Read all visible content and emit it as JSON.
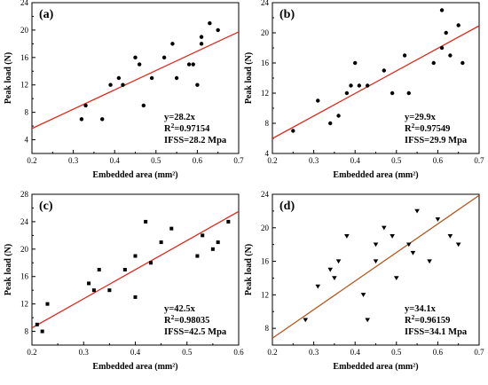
{
  "chart_data": [
    {
      "type": "scatter",
      "panel_label": "(a)",
      "xlabel": "Embedded area (mm²)",
      "ylabel": "Peak load (N)",
      "xlim": [
        0.2,
        0.7
      ],
      "ylim": [
        2,
        24
      ],
      "xticks": [
        0.2,
        0.3,
        0.4,
        0.5,
        0.6,
        0.7
      ],
      "yticks": [
        4,
        8,
        12,
        16,
        20,
        24
      ],
      "marker": "circle",
      "fit_line": {
        "slope": 28.2,
        "intercept": 0,
        "color": "#e0281e"
      },
      "annotation": [
        "y=28.2x",
        "R²=0.97154",
        "IFSS=28.2 Mpa"
      ],
      "points": [
        [
          0.32,
          7
        ],
        [
          0.33,
          9
        ],
        [
          0.37,
          7
        ],
        [
          0.39,
          12
        ],
        [
          0.41,
          13
        ],
        [
          0.42,
          12
        ],
        [
          0.45,
          16
        ],
        [
          0.46,
          15
        ],
        [
          0.47,
          9
        ],
        [
          0.49,
          13
        ],
        [
          0.52,
          16
        ],
        [
          0.54,
          18
        ],
        [
          0.55,
          13
        ],
        [
          0.58,
          15
        ],
        [
          0.59,
          15
        ],
        [
          0.6,
          12
        ],
        [
          0.61,
          18
        ],
        [
          0.61,
          19
        ],
        [
          0.63,
          21
        ],
        [
          0.65,
          20
        ]
      ]
    },
    {
      "type": "scatter",
      "panel_label": "(b)",
      "xlabel": "Embedded area (mm²)",
      "ylabel": "Peak load (N)",
      "xlim": [
        0.2,
        0.7
      ],
      "ylim": [
        4,
        24
      ],
      "xticks": [
        0.2,
        0.3,
        0.4,
        0.5,
        0.6,
        0.7
      ],
      "yticks": [
        4,
        8,
        12,
        16,
        20,
        24
      ],
      "marker": "circle",
      "fit_line": {
        "slope": 29.9,
        "intercept": 0,
        "color": "#e0281e"
      },
      "annotation": [
        "y=29.9x",
        "R²=0.97549",
        "IFSS=29.9 Mpa"
      ],
      "points": [
        [
          0.25,
          7
        ],
        [
          0.31,
          11
        ],
        [
          0.34,
          8
        ],
        [
          0.36,
          9
        ],
        [
          0.38,
          12
        ],
        [
          0.39,
          13
        ],
        [
          0.4,
          16
        ],
        [
          0.41,
          13
        ],
        [
          0.43,
          13
        ],
        [
          0.47,
          15
        ],
        [
          0.49,
          12
        ],
        [
          0.52,
          17
        ],
        [
          0.53,
          12
        ],
        [
          0.59,
          16
        ],
        [
          0.61,
          23
        ],
        [
          0.61,
          18
        ],
        [
          0.62,
          20
        ],
        [
          0.63,
          17
        ],
        [
          0.65,
          21
        ],
        [
          0.66,
          16
        ]
      ]
    },
    {
      "type": "scatter",
      "panel_label": "(c)",
      "xlabel": "Embedded area (mm²)",
      "ylabel": "Peak load (N)",
      "xlim": [
        0.2,
        0.6
      ],
      "ylim": [
        6,
        28
      ],
      "xticks": [
        0.2,
        0.3,
        0.4,
        0.5,
        0.6
      ],
      "yticks": [
        8,
        12,
        16,
        20,
        24,
        28
      ],
      "marker": "square",
      "fit_line": {
        "slope": 42.5,
        "intercept": 0,
        "color": "#e0281e"
      },
      "annotation": [
        "y=42.5x",
        "R²=0.98035",
        "IFSS=42.5 Mpa"
      ],
      "points": [
        [
          0.21,
          9
        ],
        [
          0.22,
          8
        ],
        [
          0.23,
          12
        ],
        [
          0.31,
          15
        ],
        [
          0.32,
          14
        ],
        [
          0.33,
          17
        ],
        [
          0.35,
          14
        ],
        [
          0.38,
          17
        ],
        [
          0.4,
          19
        ],
        [
          0.4,
          13
        ],
        [
          0.42,
          24
        ],
        [
          0.43,
          18
        ],
        [
          0.45,
          21
        ],
        [
          0.47,
          23
        ],
        [
          0.52,
          19
        ],
        [
          0.53,
          22
        ],
        [
          0.55,
          20
        ],
        [
          0.56,
          21
        ],
        [
          0.58,
          24
        ]
      ]
    },
    {
      "type": "scatter",
      "panel_label": "(d)",
      "xlabel": "Embedded area (mm²)",
      "ylabel": "Peak load (N)",
      "xlim": [
        0.2,
        0.7
      ],
      "ylim": [
        6,
        24
      ],
      "xticks": [
        0.2,
        0.3,
        0.4,
        0.5,
        0.6,
        0.7
      ],
      "yticks": [
        8,
        12,
        16,
        20,
        24
      ],
      "marker": "triangle-down",
      "fit_line": {
        "slope": 34.1,
        "intercept": 0,
        "color": "#b8561c"
      },
      "annotation": [
        "y=34.1x",
        "R²=0.96159",
        "IFSS=34.1 Mpa"
      ],
      "points": [
        [
          0.28,
          9
        ],
        [
          0.31,
          13
        ],
        [
          0.34,
          15
        ],
        [
          0.35,
          14
        ],
        [
          0.36,
          16
        ],
        [
          0.38,
          19
        ],
        [
          0.42,
          12
        ],
        [
          0.43,
          9
        ],
        [
          0.45,
          16
        ],
        [
          0.45,
          18
        ],
        [
          0.47,
          20
        ],
        [
          0.49,
          19
        ],
        [
          0.5,
          14
        ],
        [
          0.53,
          18
        ],
        [
          0.54,
          17
        ],
        [
          0.55,
          22
        ],
        [
          0.58,
          16
        ],
        [
          0.6,
          21
        ],
        [
          0.63,
          19
        ],
        [
          0.65,
          18
        ]
      ]
    }
  ]
}
